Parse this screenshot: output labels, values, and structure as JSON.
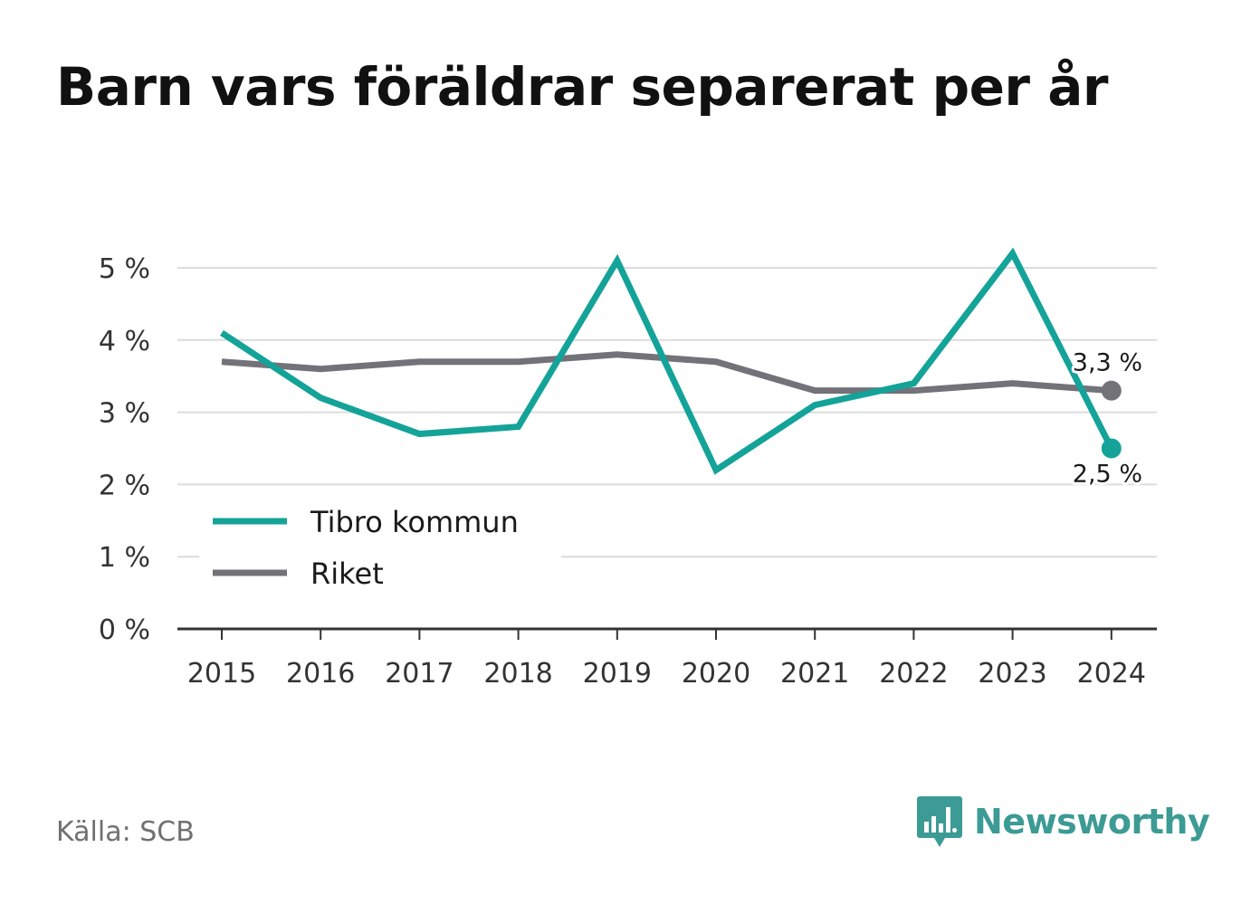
{
  "title": "Barn vars föräldrar separerat per år",
  "source": "Källa: SCB",
  "brand": {
    "name": "Newsworthy",
    "icon": "bar-chart-speech-bubble-icon",
    "color": "#3c9b94"
  },
  "colors": {
    "tibro": "#14a398",
    "riket": "#737278",
    "grid": "#dcdcdc",
    "axis": "#333333"
  },
  "chart_data": {
    "type": "line",
    "title": "Barn vars föräldrar separerat per år",
    "x": [
      "2015",
      "2016",
      "2017",
      "2018",
      "2019",
      "2020",
      "2021",
      "2022",
      "2023",
      "2024"
    ],
    "yticks": [
      "0 %",
      "1 %",
      "2 %",
      "3 %",
      "4 %",
      "5 %"
    ],
    "ylim": [
      0,
      5
    ],
    "grid": true,
    "legend_position": "bottom-left",
    "series": [
      {
        "name": "Tibro kommun",
        "values": [
          4.1,
          3.2,
          2.7,
          2.8,
          5.1,
          2.2,
          3.1,
          3.4,
          5.2,
          2.5
        ],
        "end_label": "2,5 %"
      },
      {
        "name": "Riket",
        "values": [
          3.7,
          3.6,
          3.7,
          3.7,
          3.8,
          3.7,
          3.3,
          3.3,
          3.4,
          3.3
        ],
        "end_label": "3,3 %"
      }
    ]
  }
}
